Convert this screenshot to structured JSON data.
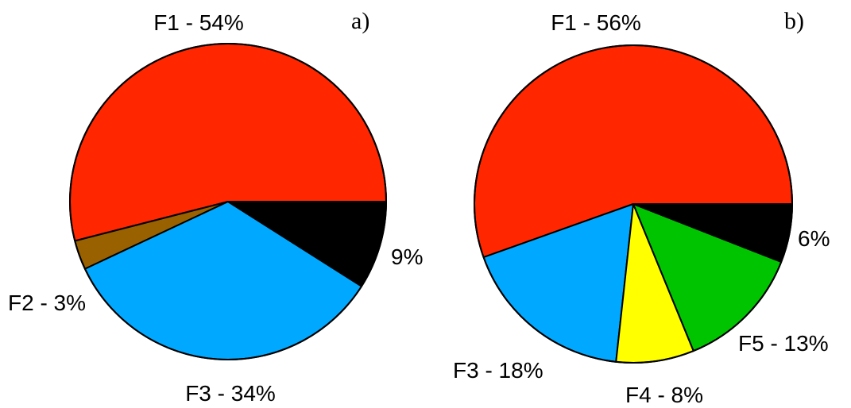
{
  "chart_data": [
    {
      "type": "pie",
      "panel_label": "a)",
      "slices": [
        {
          "name": "F1",
          "value": 54,
          "label": "F1 - 54%",
          "color": "#ff2600"
        },
        {
          "name": "F2",
          "value": 3,
          "label": "F2 - 3%",
          "color": "#996100"
        },
        {
          "name": "F3",
          "value": 34,
          "label": "F3 - 34%",
          "color": "#00a9ff"
        },
        {
          "name": "",
          "value": 9,
          "label": "9%",
          "color": "#000000"
        }
      ]
    },
    {
      "type": "pie",
      "panel_label": "b)",
      "slices": [
        {
          "name": "F1",
          "value": 56,
          "label": "F1 - 56%",
          "color": "#ff2600"
        },
        {
          "name": "F3",
          "value": 18,
          "label": "F3 - 18%",
          "color": "#00a9ff"
        },
        {
          "name": "F4",
          "value": 8,
          "label": "F4 - 8%",
          "color": "#ffff00"
        },
        {
          "name": "F5",
          "value": 13,
          "label": "F5 - 13%",
          "color": "#00c400"
        },
        {
          "name": "",
          "value": 6,
          "label": "6%",
          "color": "#000000"
        }
      ]
    }
  ]
}
